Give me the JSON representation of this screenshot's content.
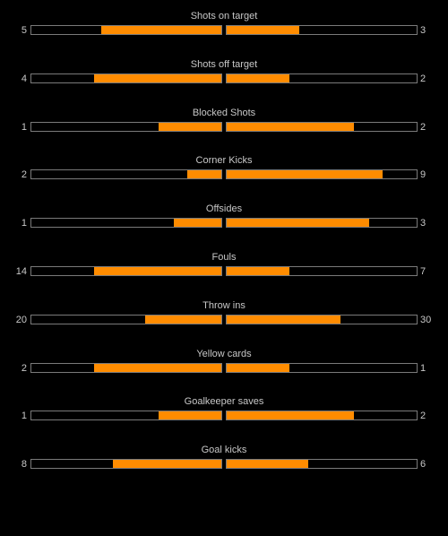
{
  "colors": {
    "background": "#000000",
    "bar_fill": "#ff8c00",
    "bar_border": "#7a7a7a",
    "text": "#c8c8c8"
  },
  "stats": [
    {
      "label": "Shots on target",
      "home": "5",
      "away": "3",
      "home_fill": 0.63,
      "away_fill": 0.38
    },
    {
      "label": "Shots off target",
      "home": "4",
      "away": "2",
      "home_fill": 0.67,
      "away_fill": 0.33
    },
    {
      "label": "Blocked Shots",
      "home": "1",
      "away": "2",
      "home_fill": 0.33,
      "away_fill": 0.67
    },
    {
      "label": "Corner Kicks",
      "home": "2",
      "away": "9",
      "home_fill": 0.18,
      "away_fill": 0.82
    },
    {
      "label": "Offsides",
      "home": "1",
      "away": "3",
      "home_fill": 0.25,
      "away_fill": 0.75
    },
    {
      "label": "Fouls",
      "home": "14",
      "away": "7",
      "home_fill": 0.67,
      "away_fill": 0.33
    },
    {
      "label": "Throw ins",
      "home": "20",
      "away": "30",
      "home_fill": 0.4,
      "away_fill": 0.6
    },
    {
      "label": "Yellow cards",
      "home": "2",
      "away": "1",
      "home_fill": 0.67,
      "away_fill": 0.33
    },
    {
      "label": "Goalkeeper saves",
      "home": "1",
      "away": "2",
      "home_fill": 0.33,
      "away_fill": 0.67
    },
    {
      "label": "Goal kicks",
      "home": "8",
      "away": "6",
      "home_fill": 0.57,
      "away_fill": 0.43
    }
  ]
}
